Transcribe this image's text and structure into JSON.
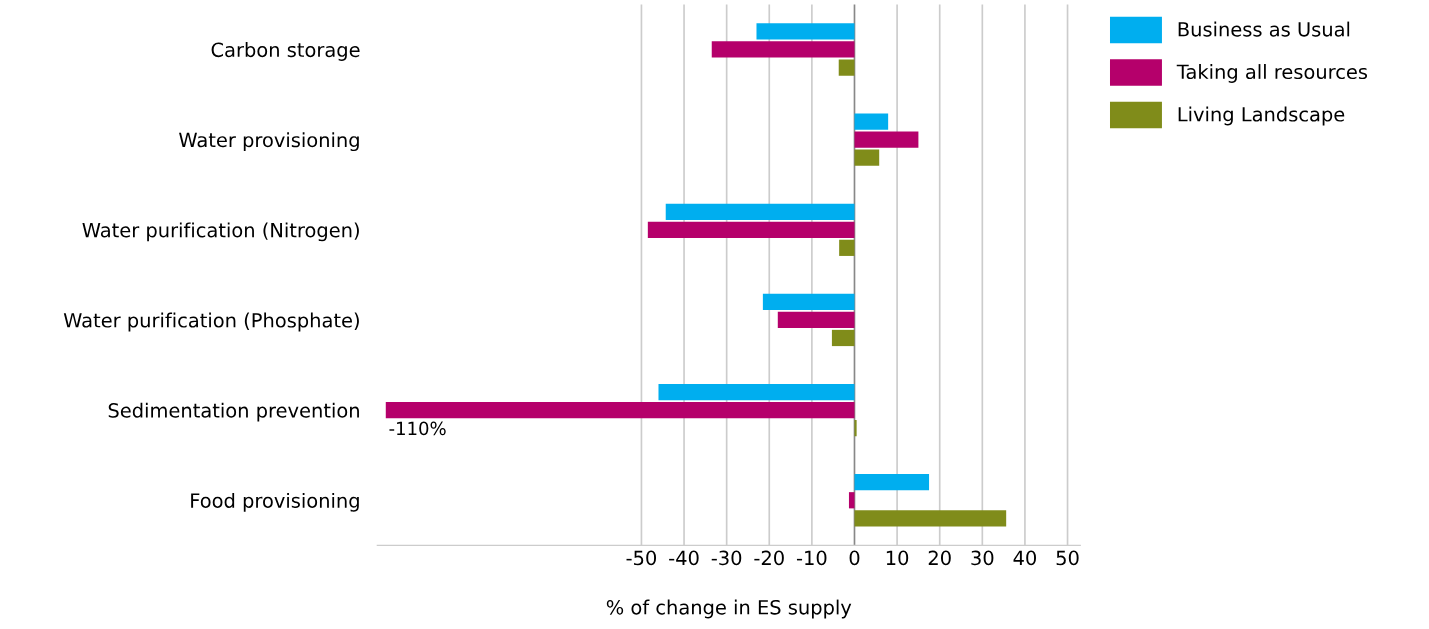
{
  "chart_data": {
    "type": "bar",
    "orientation": "horizontal",
    "xlabel": "% of change in ES supply",
    "categories": [
      "Carbon storage",
      "Water provisioning",
      "Water purification (Nitrogen)",
      "Water purification (Phosphate)",
      "Sedimentation prevention",
      "Food provisioning"
    ],
    "series": [
      {
        "name": "Business as Usual",
        "color": "#00aeef",
        "values": [
          -23,
          7.9,
          -44.3,
          -21.5,
          -46,
          17.5
        ]
      },
      {
        "name": "Taking all resources",
        "color": "#b5006b",
        "values": [
          -33.5,
          15,
          -48.5,
          -18,
          -110,
          -1.3
        ],
        "value_labels": [
          null,
          null,
          null,
          null,
          "-110%",
          null
        ]
      },
      {
        "name": "Living Landscape",
        "color": "#808c1a",
        "values": [
          -3.7,
          5.8,
          -3.6,
          -5.3,
          0.5,
          35.6
        ]
      }
    ],
    "xlim": [
      -112,
      53
    ],
    "xticks": [
      -50,
      -40,
      -30,
      -20,
      -10,
      0,
      10,
      20,
      30,
      40,
      50
    ],
    "grid": "x",
    "legend": "top right"
  }
}
